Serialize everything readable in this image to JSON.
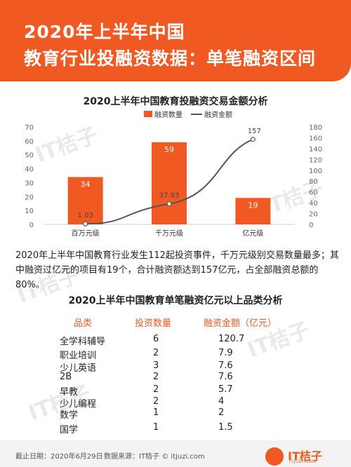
{
  "header": {
    "line1": "2020年上半年中国",
    "line2": "教育行业投融资数据：单笔融资区间"
  },
  "watermark": "IT桔子",
  "colors": {
    "accent": "#f05a22",
    "line": "#555555"
  },
  "chart_data": {
    "type": "bar",
    "title": "2020上半年中国教育投融资交易金额分析",
    "categories": [
      "百万元级",
      "千万元级",
      "亿元级"
    ],
    "series": [
      {
        "name": "融资数量",
        "type": "bar",
        "axis": "left",
        "values": [
          34,
          59,
          19
        ]
      },
      {
        "name": "融资金额",
        "type": "line",
        "axis": "right",
        "values": [
          1.03,
          37.93,
          157
        ]
      }
    ],
    "ylim_left": [
      0,
      70
    ],
    "yticks_left": [
      0,
      10,
      20,
      30,
      40,
      50,
      60,
      70
    ],
    "ylim_right": [
      0,
      180
    ],
    "yticks_right": [
      0,
      20,
      40,
      60,
      80,
      100,
      120,
      140,
      160,
      180
    ],
    "data_labels": [
      "34",
      "59",
      "19",
      "1.03",
      "37.93",
      "157"
    ],
    "legend_position": "top-center",
    "grid": false
  },
  "paragraph": "2020年上半年中国教育行业发生112起投资事件，千万元级别交易数量最多；其中融资过亿元的项目有19个，合计融资额达到157亿元，占全部融资总额的80%。",
  "table": {
    "title": "2020上半年中国教育单笔融资亿元以上品类分析",
    "headers": [
      "品类",
      "投资数量",
      "融资金额（亿元）"
    ],
    "rows": [
      [
        "全学科辅导",
        "6",
        "120.7"
      ],
      [
        "职业培训",
        "2",
        "7.9"
      ],
      [
        "少儿英语",
        "3",
        "7.6"
      ],
      [
        "2B",
        "2",
        "7.6"
      ],
      [
        "早教",
        "2",
        "5.7"
      ],
      [
        "少儿编程",
        "2",
        "4"
      ],
      [
        "数学",
        "1",
        "2"
      ],
      [
        "国学",
        "1",
        "1.5"
      ]
    ]
  },
  "footer": {
    "date": "截止日期：2020年6月29日",
    "source": "数据来源：IT桔子 © itjuzi.com",
    "logo": "IT桔子",
    "logo_sub": "ITJUZI.COM"
  }
}
